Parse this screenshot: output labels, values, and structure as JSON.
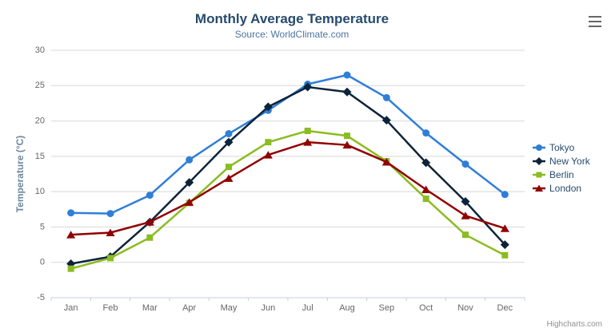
{
  "title": "Monthly Average Temperature",
  "subtitle": "Source: WorldClimate.com",
  "credits": "Highcharts.com",
  "icons": {
    "context_menu": "hamburger-icon"
  },
  "colors": {
    "title": "#274b6d",
    "subtitle": "#4d759e",
    "axis_title": "#6D869F",
    "tick_label": "#666666",
    "grid_line": "#D8D8D8",
    "axis_line": "#C0D0E0",
    "legend_text": "#274b6d",
    "credits_text": "#909090",
    "menu_icon": "#666666"
  },
  "chart_data": {
    "type": "line",
    "title": "Monthly Average Temperature",
    "subtitle": "Source: WorldClimate.com",
    "xlabel": "",
    "ylabel": "Temperature (°C)",
    "ylim": [
      -5,
      30
    ],
    "ytick_interval": 5,
    "grid": true,
    "legend_position": "right",
    "categories": [
      "Jan",
      "Feb",
      "Mar",
      "Apr",
      "May",
      "Jun",
      "Jul",
      "Aug",
      "Sep",
      "Oct",
      "Nov",
      "Dec"
    ],
    "series": [
      {
        "name": "Tokyo",
        "color": "#2f7ed8",
        "marker": "circle",
        "values": [
          7.0,
          6.9,
          9.5,
          14.5,
          18.2,
          21.5,
          25.2,
          26.5,
          23.3,
          18.3,
          13.9,
          9.6
        ]
      },
      {
        "name": "New York",
        "color": "#0d233a",
        "marker": "diamond",
        "values": [
          -0.2,
          0.8,
          5.7,
          11.3,
          17.0,
          22.0,
          24.8,
          24.1,
          20.1,
          14.1,
          8.6,
          2.5
        ]
      },
      {
        "name": "Berlin",
        "color": "#8bbc21",
        "marker": "square",
        "values": [
          -0.9,
          0.6,
          3.5,
          8.4,
          13.5,
          17.0,
          18.6,
          17.9,
          14.3,
          9.0,
          3.9,
          1.0
        ]
      },
      {
        "name": "London",
        "color": "#910000",
        "marker": "triangle",
        "values": [
          3.9,
          4.2,
          5.7,
          8.5,
          11.9,
          15.2,
          17.0,
          16.6,
          14.2,
          10.3,
          6.6,
          4.8
        ]
      }
    ]
  }
}
